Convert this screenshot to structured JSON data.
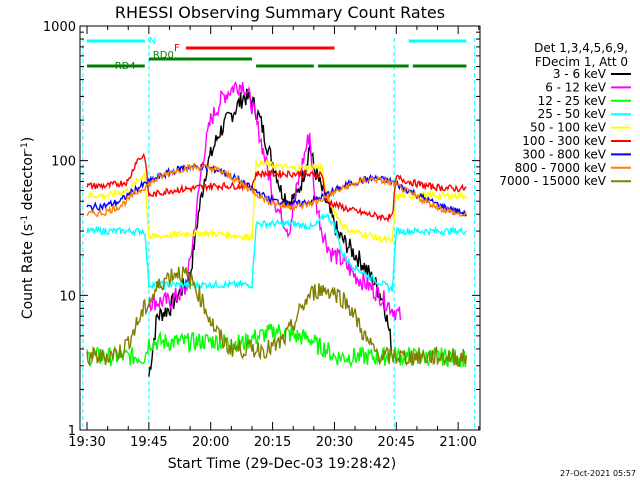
{
  "chart_data": {
    "type": "line",
    "title": "RHESSI Observing Summary Count Rates",
    "xlabel": "Start Time (29-Dec-03 19:28:42)",
    "ylabel_main": "Count Rate (s",
    "ylabel_sup1": "-1",
    "ylabel_mid": " detector",
    "ylabel_sup2": "-1",
    "ylabel_end": ")",
    "yscale": "log",
    "ylim": [
      1,
      1000
    ],
    "xlim_minutes": [
      -1.7,
      95.3
    ],
    "x_ticks": [
      {
        "label": "19:30",
        "min": 0
      },
      {
        "label": "19:45",
        "min": 15
      },
      {
        "label": "20:00",
        "min": 30
      },
      {
        "label": "20:15",
        "min": 45
      },
      {
        "label": "20:30",
        "min": 60
      },
      {
        "label": "20:45",
        "min": 75
      },
      {
        "label": "21:00",
        "min": 90
      }
    ],
    "y_ticks": [
      {
        "label": "1",
        "value": 1
      },
      {
        "label": "10",
        "value": 10
      },
      {
        "label": "100",
        "value": 100
      },
      {
        "label": "1000",
        "value": 1000
      }
    ],
    "legend_header": [
      "Det 1,3,4,5,6,9,",
      "FDecim 1, Att 0"
    ],
    "series": [
      {
        "name": "3 - 6 keV",
        "color": "#000000",
        "points": [
          [
            15,
            2.5
          ],
          [
            17,
            7
          ],
          [
            20,
            8
          ],
          [
            22,
            10
          ],
          [
            25,
            14
          ],
          [
            27,
            40
          ],
          [
            29,
            90
          ],
          [
            32,
            160
          ],
          [
            35,
            220
          ],
          [
            38,
            300
          ],
          [
            40,
            280
          ],
          [
            42,
            200
          ],
          [
            44,
            120
          ],
          [
            46,
            80
          ],
          [
            47,
            60
          ],
          [
            49,
            50
          ],
          [
            51,
            55
          ],
          [
            53,
            90
          ],
          [
            54,
            130
          ],
          [
            55,
            90
          ],
          [
            57,
            60
          ],
          [
            59,
            40
          ],
          [
            61,
            28
          ],
          [
            64,
            22
          ],
          [
            67,
            17
          ],
          [
            70,
            12
          ],
          [
            72,
            9
          ],
          [
            74,
            4
          ]
        ]
      },
      {
        "name": "6 - 12 keV",
        "color": "#ff00ff",
        "points": [
          [
            15,
            9
          ],
          [
            17,
            9
          ],
          [
            20,
            9
          ],
          [
            22,
            10
          ],
          [
            24,
            11
          ],
          [
            26,
            30
          ],
          [
            28,
            100
          ],
          [
            30,
            200
          ],
          [
            33,
            300
          ],
          [
            36,
            360
          ],
          [
            38,
            370
          ],
          [
            40,
            260
          ],
          [
            42,
            150
          ],
          [
            44,
            80
          ],
          [
            46,
            45
          ],
          [
            48,
            35
          ],
          [
            49,
            30
          ],
          [
            51,
            65
          ],
          [
            53,
            120
          ],
          [
            54,
            160
          ],
          [
            55,
            60
          ],
          [
            57,
            30
          ],
          [
            59,
            21
          ],
          [
            62,
            18
          ],
          [
            65,
            14
          ],
          [
            68,
            12
          ],
          [
            71,
            10
          ],
          [
            74,
            8
          ],
          [
            76,
            7
          ]
        ]
      },
      {
        "name": "12 - 25 keV",
        "color": "#00ff00",
        "points": [
          [
            0,
            3.5
          ],
          [
            5,
            3.5
          ],
          [
            10,
            3.5
          ],
          [
            14,
            3.5
          ],
          [
            15,
            4.5
          ],
          [
            18,
            4.5
          ],
          [
            22,
            4.5
          ],
          [
            26,
            4.5
          ],
          [
            30,
            4.6
          ],
          [
            34,
            4.5
          ],
          [
            38,
            4.4
          ],
          [
            40,
            4.8
          ],
          [
            42,
            5.0
          ],
          [
            46,
            5.5
          ],
          [
            50,
            5.0
          ],
          [
            54,
            4.8
          ],
          [
            56,
            4.2
          ],
          [
            58,
            4
          ],
          [
            60,
            3.5
          ],
          [
            64,
            3.5
          ],
          [
            68,
            3.5
          ],
          [
            72,
            3.5
          ],
          [
            74,
            3.6
          ],
          [
            76,
            3.5
          ],
          [
            80,
            3.5
          ],
          [
            84,
            3.5
          ],
          [
            88,
            3.5
          ],
          [
            92,
            3.4
          ]
        ]
      },
      {
        "name": "25 - 50 keV",
        "color": "#00ffff",
        "points": [
          [
            0,
            30
          ],
          [
            5,
            30
          ],
          [
            10,
            30
          ],
          [
            14,
            30
          ],
          [
            15,
            12
          ],
          [
            20,
            12
          ],
          [
            25,
            12
          ],
          [
            30,
            12
          ],
          [
            35,
            12
          ],
          [
            40,
            12
          ],
          [
            41,
            34
          ],
          [
            45,
            34
          ],
          [
            50,
            34
          ],
          [
            55,
            32
          ],
          [
            58,
            40
          ],
          [
            60,
            33
          ],
          [
            62,
            20
          ],
          [
            64,
            17
          ],
          [
            68,
            14
          ],
          [
            72,
            12
          ],
          [
            74,
            11
          ],
          [
            75,
            30
          ],
          [
            78,
            30
          ],
          [
            82,
            30
          ],
          [
            86,
            30
          ],
          [
            90,
            30
          ],
          [
            92,
            30
          ]
        ]
      },
      {
        "name": "50 - 100 keV",
        "color": "#ffff00",
        "points": [
          [
            0,
            55
          ],
          [
            5,
            55
          ],
          [
            10,
            60
          ],
          [
            14,
            80
          ],
          [
            15,
            27
          ],
          [
            20,
            28
          ],
          [
            25,
            29
          ],
          [
            30,
            29
          ],
          [
            35,
            28
          ],
          [
            40,
            27
          ],
          [
            41,
            95
          ],
          [
            43,
            95
          ],
          [
            45,
            92
          ],
          [
            50,
            88
          ],
          [
            55,
            90
          ],
          [
            57,
            90
          ],
          [
            58,
            55
          ],
          [
            62,
            33
          ],
          [
            64,
            30
          ],
          [
            68,
            28
          ],
          [
            72,
            26
          ],
          [
            74,
            25
          ],
          [
            75,
            55
          ],
          [
            78,
            55
          ],
          [
            82,
            55
          ],
          [
            86,
            55
          ],
          [
            90,
            55
          ],
          [
            92,
            55
          ]
        ]
      },
      {
        "name": "100 - 300 keV",
        "color": "#ff0000",
        "points": [
          [
            0,
            65
          ],
          [
            5,
            65
          ],
          [
            10,
            70
          ],
          [
            12,
            100
          ],
          [
            14,
            110
          ],
          [
            15,
            55
          ],
          [
            20,
            60
          ],
          [
            25,
            62
          ],
          [
            30,
            65
          ],
          [
            35,
            65
          ],
          [
            40,
            65
          ],
          [
            41,
            80
          ],
          [
            45,
            80
          ],
          [
            50,
            80
          ],
          [
            55,
            78
          ],
          [
            57,
            80
          ],
          [
            58,
            50
          ],
          [
            62,
            45
          ],
          [
            64,
            43
          ],
          [
            68,
            40
          ],
          [
            72,
            38
          ],
          [
            74,
            38
          ],
          [
            75,
            75
          ],
          [
            78,
            70
          ],
          [
            82,
            65
          ],
          [
            86,
            63
          ],
          [
            90,
            62
          ],
          [
            92,
            62
          ]
        ]
      },
      {
        "name": "300 - 800 keV",
        "color": "#0000ff",
        "points": [
          [
            0,
            45
          ],
          [
            4,
            46
          ],
          [
            8,
            50
          ],
          [
            12,
            62
          ],
          [
            16,
            72
          ],
          [
            20,
            82
          ],
          [
            24,
            90
          ],
          [
            28,
            90
          ],
          [
            32,
            85
          ],
          [
            36,
            74
          ],
          [
            40,
            62
          ],
          [
            44,
            52
          ],
          [
            48,
            48
          ],
          [
            52,
            48
          ],
          [
            56,
            52
          ],
          [
            60,
            60
          ],
          [
            64,
            68
          ],
          [
            68,
            73
          ],
          [
            70,
            74
          ],
          [
            74,
            70
          ],
          [
            78,
            60
          ],
          [
            82,
            52
          ],
          [
            86,
            46
          ],
          [
            90,
            42
          ],
          [
            92,
            40
          ]
        ]
      },
      {
        "name": "800 - 7000 keV",
        "color": "#ff8000",
        "points": [
          [
            0,
            40
          ],
          [
            4,
            41
          ],
          [
            8,
            46
          ],
          [
            12,
            58
          ],
          [
            16,
            70
          ],
          [
            20,
            82
          ],
          [
            24,
            88
          ],
          [
            28,
            90
          ],
          [
            32,
            85
          ],
          [
            36,
            73
          ],
          [
            40,
            60
          ],
          [
            44,
            50
          ],
          [
            48,
            46
          ],
          [
            52,
            46
          ],
          [
            56,
            50
          ],
          [
            60,
            58
          ],
          [
            64,
            66
          ],
          [
            68,
            72
          ],
          [
            70,
            73
          ],
          [
            74,
            68
          ],
          [
            78,
            58
          ],
          [
            82,
            50
          ],
          [
            86,
            44
          ],
          [
            90,
            40
          ],
          [
            92,
            39
          ]
        ]
      },
      {
        "name": "7000 - 15000 keV",
        "color": "#808000",
        "points": [
          [
            0,
            3.5
          ],
          [
            4,
            3.5
          ],
          [
            8,
            3.8
          ],
          [
            10,
            4.5
          ],
          [
            12,
            6
          ],
          [
            14,
            8
          ],
          [
            16,
            10
          ],
          [
            18,
            12.5
          ],
          [
            20,
            14
          ],
          [
            22,
            15
          ],
          [
            24,
            14
          ],
          [
            26,
            12
          ],
          [
            28,
            9
          ],
          [
            30,
            6.5
          ],
          [
            32,
            5
          ],
          [
            34,
            4.2
          ],
          [
            36,
            4
          ],
          [
            38,
            4
          ],
          [
            40,
            4
          ],
          [
            42,
            4
          ],
          [
            44,
            4
          ],
          [
            46,
            4.2
          ],
          [
            48,
            4.8
          ],
          [
            50,
            6
          ],
          [
            52,
            8
          ],
          [
            54,
            10
          ],
          [
            56,
            11
          ],
          [
            58,
            11
          ],
          [
            60,
            10.5
          ],
          [
            62,
            9.5
          ],
          [
            64,
            8
          ],
          [
            66,
            6
          ],
          [
            68,
            4.5
          ],
          [
            70,
            3.8
          ],
          [
            72,
            3.5
          ],
          [
            76,
            3.5
          ],
          [
            80,
            3.5
          ],
          [
            84,
            3.5
          ],
          [
            88,
            3.5
          ],
          [
            92,
            3.4
          ]
        ]
      }
    ],
    "flag_bars": [
      {
        "label": "N",
        "color": "#00ffff",
        "segments": [
          [
            0,
            14
          ],
          [
            78,
            92
          ]
        ]
      },
      {
        "label": "F",
        "color": "#ff0000",
        "segments": [
          [
            24,
            60
          ]
        ]
      },
      {
        "label": "RD0",
        "color": "#008000",
        "segments": [
          [
            15,
            40
          ]
        ]
      },
      {
        "label": "RD4",
        "color": "#008000",
        "segments": [
          [
            0,
            14
          ],
          [
            41,
            55
          ],
          [
            56,
            78
          ],
          [
            79,
            92
          ]
        ]
      }
    ],
    "night_boundaries": [
      [
        -1,
        15
      ],
      [
        74.5,
        94
      ]
    ],
    "timestamp": "27-Oct-2021 05:57"
  }
}
